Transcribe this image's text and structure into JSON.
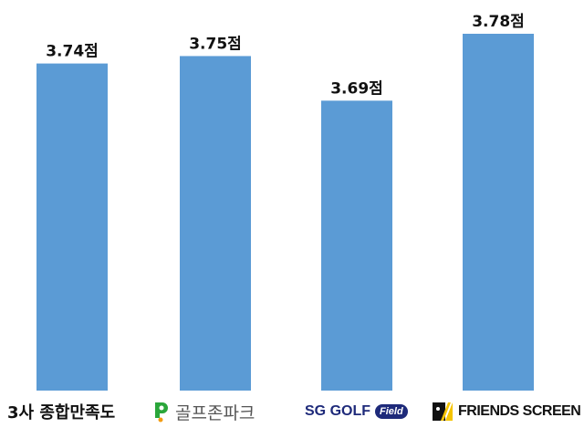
{
  "chart_data": {
    "type": "bar",
    "categories": [
      "3사 종합만족도",
      "골프존파크",
      "SG GOLF Field",
      "FRIENDS SCREEN"
    ],
    "values": [
      3.74,
      3.75,
      3.69,
      3.78
    ],
    "data_labels": [
      "3.74점",
      "3.75점",
      "3.69점",
      "3.78점"
    ],
    "title": "",
    "xlabel": "",
    "ylabel": "",
    "ylim": [
      3.3,
      3.8
    ],
    "grid": false,
    "bar_color": "#5b9bd5"
  },
  "logos": {
    "sg_golf": "SG GOLF",
    "field": "Field",
    "golfzon_icon": "golfzon-p-logo",
    "friends_icon": "friends-screen-logo"
  }
}
